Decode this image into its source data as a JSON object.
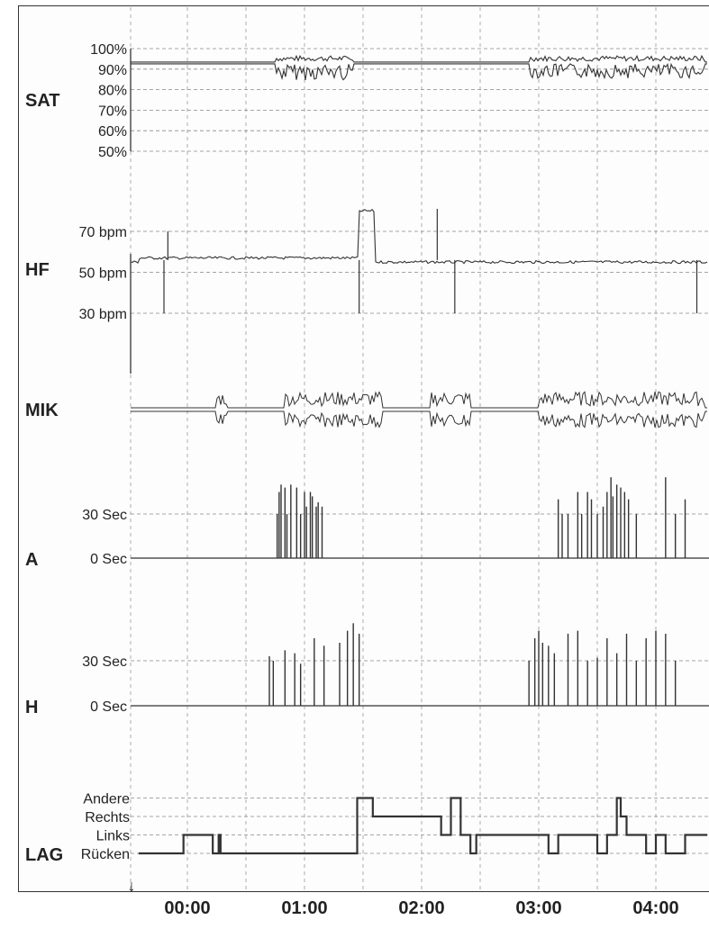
{
  "chart_data": [
    {
      "type": "area",
      "label": "SAT",
      "ticks": [
        "100%",
        "90%",
        "80%",
        "70%",
        "60%",
        "50%"
      ],
      "tick_values": [
        100,
        90,
        80,
        70,
        60,
        50
      ],
      "ylim": [
        50,
        100
      ],
      "baseline": 93,
      "bursts": [
        {
          "start": "00:45",
          "end": "01:25",
          "min": 85,
          "max": 97
        },
        {
          "start": "02:55",
          "end": "04:25",
          "min": 86,
          "max": 98
        }
      ]
    },
    {
      "type": "line",
      "label": "HF",
      "ticks": [
        "70 bpm",
        "50 bpm",
        "30 bpm"
      ],
      "tick_values": [
        70,
        50,
        30
      ],
      "ylim": [
        25,
        85
      ],
      "baseline_segments": [
        {
          "start": "-00:25",
          "end": "01:28",
          "value": 57
        },
        {
          "start": "01:28",
          "end": "01:36",
          "value": 80
        },
        {
          "start": "01:36",
          "end": "04:25",
          "value": 55
        }
      ],
      "spikes": [
        {
          "t": "-00:12",
          "value": 30
        },
        {
          "t": "-00:10",
          "value": 70
        },
        {
          "t": "01:28",
          "value": 30
        },
        {
          "t": "02:08",
          "value": 81
        },
        {
          "t": "02:17",
          "value": 30
        },
        {
          "t": "04:21",
          "value": 30
        }
      ]
    },
    {
      "type": "line",
      "label": "MIK",
      "bursts": [
        {
          "start": "00:15",
          "end": "00:20"
        },
        {
          "start": "00:50",
          "end": "01:40"
        },
        {
          "start": "02:05",
          "end": "02:25"
        },
        {
          "start": "03:00",
          "end": "04:25"
        }
      ]
    },
    {
      "type": "bar",
      "label": "A",
      "ticks": [
        "30 Sec",
        "0 Sec"
      ],
      "tick_values": [
        30,
        0
      ],
      "ylim": [
        0,
        60
      ],
      "events": [
        {
          "t": "00:46",
          "value": 30
        },
        {
          "t": "00:47",
          "value": 45
        },
        {
          "t": "00:48",
          "value": 50
        },
        {
          "t": "00:50",
          "value": 48
        },
        {
          "t": "00:51",
          "value": 30
        },
        {
          "t": "00:53",
          "value": 50
        },
        {
          "t": "00:56",
          "value": 48
        },
        {
          "t": "00:58",
          "value": 30
        },
        {
          "t": "01:00",
          "value": 45
        },
        {
          "t": "01:01",
          "value": 35
        },
        {
          "t": "01:03",
          "value": 45
        },
        {
          "t": "01:04",
          "value": 42
        },
        {
          "t": "01:06",
          "value": 35
        },
        {
          "t": "01:07",
          "value": 38
        },
        {
          "t": "01:09",
          "value": 35
        },
        {
          "t": "03:10",
          "value": 40
        },
        {
          "t": "03:12",
          "value": 30
        },
        {
          "t": "03:15",
          "value": 30
        },
        {
          "t": "03:20",
          "value": 45
        },
        {
          "t": "03:22",
          "value": 30
        },
        {
          "t": "03:25",
          "value": 45
        },
        {
          "t": "03:27",
          "value": 40
        },
        {
          "t": "03:30",
          "value": 30
        },
        {
          "t": "03:33",
          "value": 35
        },
        {
          "t": "03:35",
          "value": 45
        },
        {
          "t": "03:37",
          "value": 55
        },
        {
          "t": "03:38",
          "value": 42
        },
        {
          "t": "03:40",
          "value": 50
        },
        {
          "t": "03:42",
          "value": 48
        },
        {
          "t": "03:44",
          "value": 45
        },
        {
          "t": "03:46",
          "value": 40
        },
        {
          "t": "03:50",
          "value": 30
        },
        {
          "t": "04:05",
          "value": 55
        },
        {
          "t": "04:10",
          "value": 30
        },
        {
          "t": "04:15",
          "value": 40
        }
      ]
    },
    {
      "type": "bar",
      "label": "H",
      "ticks": [
        "30 Sec",
        "0 Sec"
      ],
      "tick_values": [
        30,
        0
      ],
      "ylim": [
        0,
        60
      ],
      "events": [
        {
          "t": "00:42",
          "value": 33
        },
        {
          "t": "00:44",
          "value": 30
        },
        {
          "t": "00:50",
          "value": 37
        },
        {
          "t": "00:55",
          "value": 35
        },
        {
          "t": "00:58",
          "value": 28
        },
        {
          "t": "01:05",
          "value": 45
        },
        {
          "t": "01:10",
          "value": 40
        },
        {
          "t": "01:18",
          "value": 42
        },
        {
          "t": "01:22",
          "value": 50
        },
        {
          "t": "01:25",
          "value": 55
        },
        {
          "t": "01:28",
          "value": 48
        },
        {
          "t": "02:55",
          "value": 30
        },
        {
          "t": "02:58",
          "value": 45
        },
        {
          "t": "03:00",
          "value": 50
        },
        {
          "t": "03:02",
          "value": 42
        },
        {
          "t": "03:05",
          "value": 40
        },
        {
          "t": "03:08",
          "value": 35
        },
        {
          "t": "03:15",
          "value": 48
        },
        {
          "t": "03:20",
          "value": 50
        },
        {
          "t": "03:25",
          "value": 30
        },
        {
          "t": "03:30",
          "value": 32
        },
        {
          "t": "03:35",
          "value": 45
        },
        {
          "t": "03:40",
          "value": 35
        },
        {
          "t": "03:45",
          "value": 48
        },
        {
          "t": "03:50",
          "value": 30
        },
        {
          "t": "03:55",
          "value": 45
        },
        {
          "t": "04:00",
          "value": 50
        },
        {
          "t": "04:05",
          "value": 48
        },
        {
          "t": "04:10",
          "value": 30
        }
      ]
    },
    {
      "type": "line",
      "label": "LAG",
      "ticks": [
        "Andere",
        "Rechts",
        "Links",
        "Rücken"
      ],
      "levels": {
        "Rücken": 0,
        "Links": 1,
        "Rechts": 2,
        "Andere": 3
      },
      "steps": [
        {
          "t": "-00:25",
          "level": 0
        },
        {
          "t": "-00:02",
          "level": 1
        },
        {
          "t": "00:13",
          "level": 0
        },
        {
          "t": "00:16",
          "level": 1
        },
        {
          "t": "00:17",
          "level": 0
        },
        {
          "t": "01:27",
          "level": 3
        },
        {
          "t": "01:35",
          "level": 2
        },
        {
          "t": "01:40",
          "level": 2
        },
        {
          "t": "01:50",
          "level": 2
        },
        {
          "t": "02:10",
          "level": 1
        },
        {
          "t": "02:15",
          "level": 3
        },
        {
          "t": "02:20",
          "level": 1
        },
        {
          "t": "02:25",
          "level": 0
        },
        {
          "t": "02:28",
          "level": 1
        },
        {
          "t": "03:05",
          "level": 0
        },
        {
          "t": "03:10",
          "level": 1
        },
        {
          "t": "03:30",
          "level": 0
        },
        {
          "t": "03:35",
          "level": 1
        },
        {
          "t": "03:40",
          "level": 3
        },
        {
          "t": "03:42",
          "level": 2
        },
        {
          "t": "03:45",
          "level": 1
        },
        {
          "t": "03:55",
          "level": 0
        },
        {
          "t": "04:00",
          "level": 1
        },
        {
          "t": "04:05",
          "level": 0
        },
        {
          "t": "04:15",
          "level": 1
        }
      ]
    }
  ],
  "x_axis": {
    "ticks": [
      "00:00",
      "01:00",
      "02:00",
      "03:00",
      "04:00"
    ],
    "range": [
      "-00:28",
      "04:25"
    ]
  },
  "start_marker": "↓"
}
